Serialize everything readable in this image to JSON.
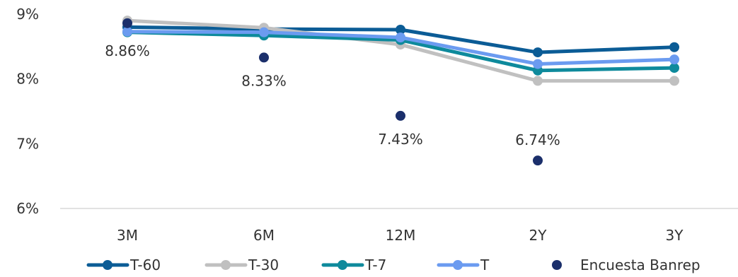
{
  "chart_data": {
    "type": "line",
    "categories": [
      "3M",
      "6M",
      "12M",
      "2Y",
      "3Y"
    ],
    "ylim": [
      6,
      9
    ],
    "yticks": [
      6,
      7,
      8,
      9
    ],
    "ytick_labels": [
      "6%",
      "7%",
      "8%",
      "9%"
    ],
    "grid": false,
    "legend_position": "bottom",
    "series": [
      {
        "name": "T-60",
        "color": "#0b5c96",
        "values": [
          8.8,
          8.77,
          8.76,
          8.41,
          8.49
        ]
      },
      {
        "name": "T-30",
        "color": "#c0c0c0",
        "values": [
          8.9,
          8.79,
          8.53,
          7.97,
          7.97
        ]
      },
      {
        "name": "T-7",
        "color": "#0e8a9c",
        "values": [
          8.72,
          8.67,
          8.6,
          8.13,
          8.17
        ]
      },
      {
        "name": "T",
        "color": "#6b9bf0",
        "values": [
          8.73,
          8.72,
          8.64,
          8.23,
          8.3
        ]
      }
    ],
    "survey": {
      "name": "Encuesta Banrep",
      "color": "#1b2f6b",
      "points": [
        {
          "category": "3M",
          "value": 8.86,
          "label": "8.86%"
        },
        {
          "category": "6M",
          "value": 8.33,
          "label": "8.33%"
        },
        {
          "category": "12M",
          "value": 7.43,
          "label": "7.43%"
        },
        {
          "category": "2Y",
          "value": 6.74,
          "label": "6.74%"
        }
      ]
    }
  }
}
